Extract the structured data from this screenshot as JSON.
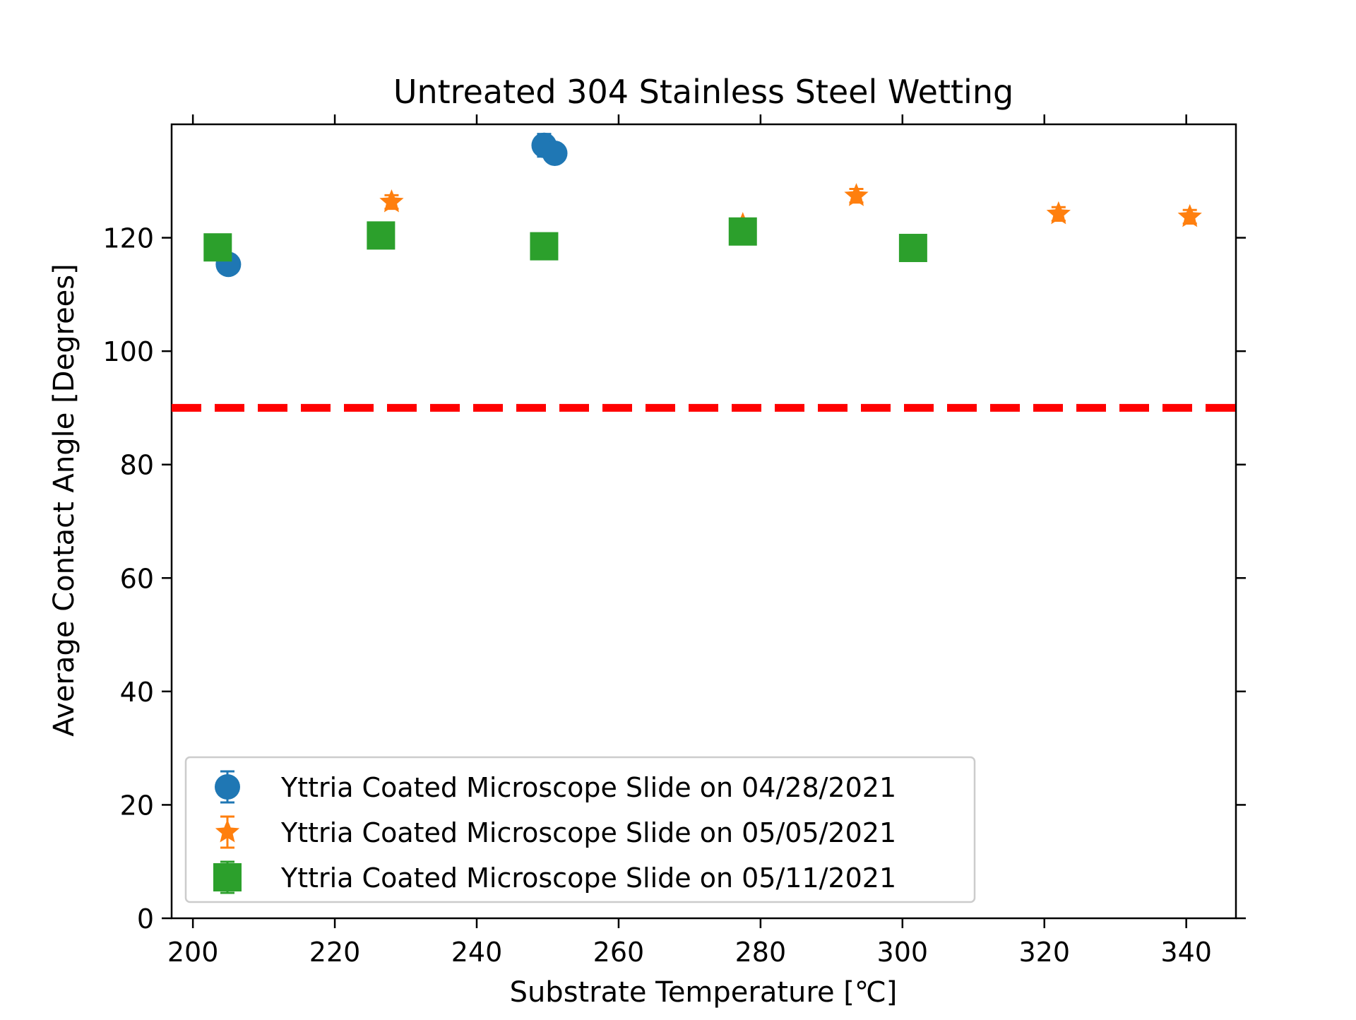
{
  "chart_data": {
    "type": "scatter",
    "title": "Untreated 304 Stainless Steel Wetting",
    "xlabel": "Substrate Temperature [℃]",
    "ylabel": "Average Contact Angle [Degrees]",
    "xlim": [
      197,
      347
    ],
    "ylim": [
      0,
      140
    ],
    "x_ticks": [
      200,
      220,
      240,
      260,
      280,
      300,
      320,
      340
    ],
    "y_ticks": [
      0,
      20,
      40,
      60,
      80,
      100,
      120
    ],
    "grid": false,
    "legend_position": "lower-left",
    "reference_line": {
      "y": 90,
      "color": "#ff0000",
      "style": "dashed"
    },
    "series": [
      {
        "name": "Yttria Coated Microscope Slide on 04/28/2021",
        "marker": "circle",
        "color": "#1f77b4",
        "points": [
          {
            "x": 205,
            "y": 115.3,
            "err": 1.3
          },
          {
            "x": 249.5,
            "y": 136.3,
            "err": 2.0
          },
          {
            "x": 251,
            "y": 134.9,
            "err": 1.0
          }
        ]
      },
      {
        "name": "Yttria Coated Microscope Slide on 05/05/2021",
        "marker": "star",
        "color": "#ff7f0e",
        "points": [
          {
            "x": 228,
            "y": 126.3,
            "err": 1.2
          },
          {
            "x": 277.5,
            "y": 122.3,
            "err": 1.0
          },
          {
            "x": 293.5,
            "y": 127.4,
            "err": 1.2
          },
          {
            "x": 322,
            "y": 124.2,
            "err": 1.2
          },
          {
            "x": 340.5,
            "y": 123.7,
            "err": 1.2
          }
        ]
      },
      {
        "name": "Yttria Coated Microscope Slide on 05/11/2021",
        "marker": "square",
        "color": "#2ca02c",
        "points": [
          {
            "x": 203.5,
            "y": 118.3,
            "err": 1.0
          },
          {
            "x": 226.5,
            "y": 120.4,
            "err": 1.0
          },
          {
            "x": 249.5,
            "y": 118.5,
            "err": 1.0
          },
          {
            "x": 277.5,
            "y": 121.1,
            "err": 1.0
          },
          {
            "x": 301.5,
            "y": 118.2,
            "err": 1.0
          }
        ]
      }
    ]
  }
}
